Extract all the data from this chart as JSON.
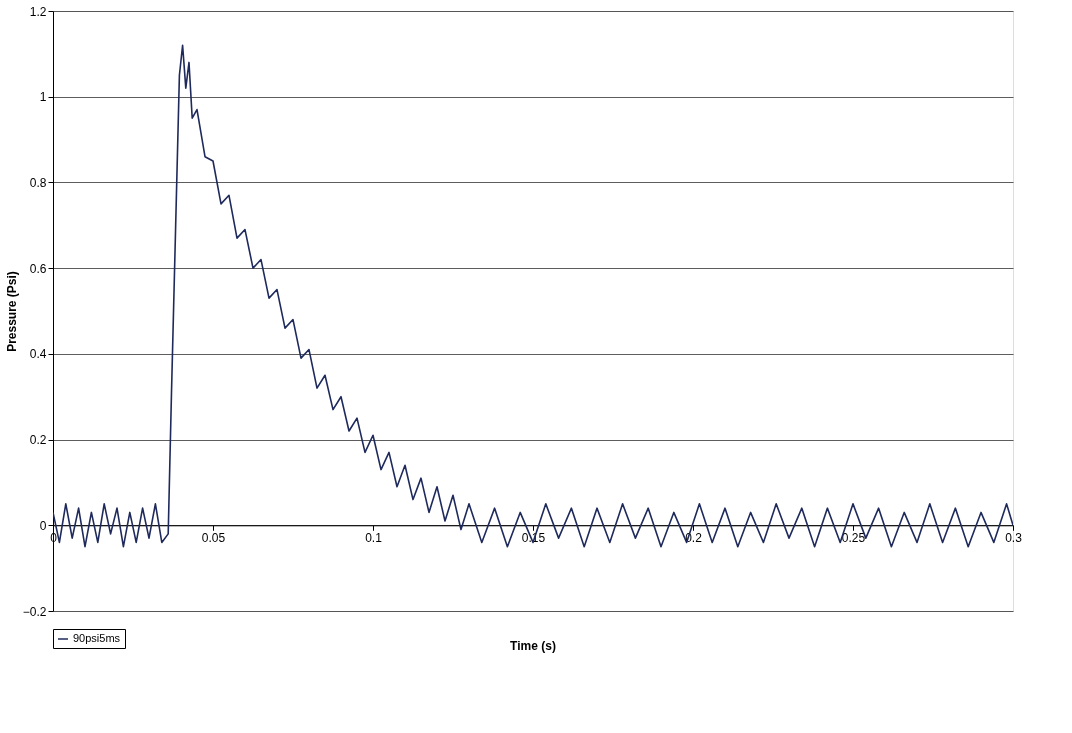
{
  "chart_data": {
    "type": "line",
    "xlabel": "Time (s)",
    "ylabel": "Pressure (Psi)",
    "xlim": [
      0,
      0.3
    ],
    "ylim": [
      -0.2,
      1.2
    ],
    "xticks": [
      0,
      0.05,
      0.1,
      0.15,
      0.2,
      0.25,
      0.3
    ],
    "yticks": [
      -0.2,
      0,
      0.2,
      0.4,
      0.6,
      0.8,
      1,
      1.2
    ],
    "grid": "y",
    "legend": "bottom",
    "marker": "none",
    "line_style": "solid",
    "x": [
      0,
      0.002,
      0.004,
      0.006,
      0.008,
      0.01,
      0.012,
      0.014,
      0.016,
      0.018,
      0.02,
      0.022,
      0.024,
      0.026,
      0.028,
      0.03,
      0.032,
      0.034,
      0.036,
      0.037,
      0.0385,
      0.0395,
      0.0405,
      0.0415,
      0.0425,
      0.0435,
      0.045,
      0.0475,
      0.05,
      0.0525,
      0.055,
      0.0575,
      0.06,
      0.0625,
      0.065,
      0.0675,
      0.07,
      0.0725,
      0.075,
      0.0775,
      0.08,
      0.0825,
      0.085,
      0.0875,
      0.09,
      0.0925,
      0.095,
      0.0975,
      0.1,
      0.1025,
      0.105,
      0.1075,
      0.11,
      0.1125,
      0.115,
      0.1175,
      0.12,
      0.1225,
      0.125,
      0.1275,
      0.13,
      0.134,
      0.138,
      0.142,
      0.146,
      0.15,
      0.154,
      0.158,
      0.162,
      0.166,
      0.17,
      0.174,
      0.178,
      0.182,
      0.186,
      0.19,
      0.194,
      0.198,
      0.202,
      0.206,
      0.21,
      0.214,
      0.218,
      0.222,
      0.226,
      0.23,
      0.234,
      0.238,
      0.242,
      0.246,
      0.25,
      0.254,
      0.258,
      0.262,
      0.266,
      0.27,
      0.274,
      0.278,
      0.282,
      0.286,
      0.29,
      0.294,
      0.298,
      0.3
    ],
    "series": [
      {
        "name": "90psi5ms",
        "color": "#1f2a5c",
        "values": [
          0.03,
          -0.04,
          0.05,
          -0.03,
          0.04,
          -0.05,
          0.03,
          -0.04,
          0.05,
          -0.02,
          0.04,
          -0.05,
          0.03,
          -0.04,
          0.04,
          -0.03,
          0.05,
          -0.04,
          -0.02,
          0.3,
          0.75,
          1.05,
          1.12,
          1.02,
          1.08,
          0.95,
          0.97,
          0.86,
          0.85,
          0.75,
          0.77,
          0.67,
          0.69,
          0.6,
          0.62,
          0.53,
          0.55,
          0.46,
          0.48,
          0.39,
          0.41,
          0.32,
          0.35,
          0.27,
          0.3,
          0.22,
          0.25,
          0.17,
          0.21,
          0.13,
          0.17,
          0.09,
          0.14,
          0.06,
          0.11,
          0.03,
          0.09,
          0.01,
          0.07,
          -0.01,
          0.05,
          -0.04,
          0.04,
          -0.05,
          0.03,
          -0.04,
          0.05,
          -0.03,
          0.04,
          -0.05,
          0.04,
          -0.04,
          0.05,
          -0.03,
          0.04,
          -0.05,
          0.03,
          -0.04,
          0.05,
          -0.04,
          0.04,
          -0.05,
          0.03,
          -0.04,
          0.05,
          -0.03,
          0.04,
          -0.05,
          0.04,
          -0.04,
          0.05,
          -0.03,
          0.04,
          -0.05,
          0.03,
          -0.04,
          0.05,
          -0.04,
          0.04,
          -0.05,
          0.03,
          -0.04,
          0.05,
          0.0
        ]
      }
    ]
  }
}
